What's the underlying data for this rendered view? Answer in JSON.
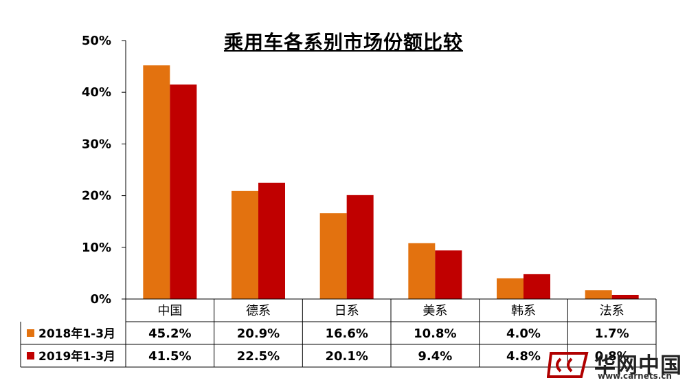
{
  "chart_data": {
    "type": "bar",
    "title": "乘用车各系别市场份额比较",
    "categories": [
      "中国",
      "德系",
      "日系",
      "美系",
      "韩系",
      "法系"
    ],
    "series": [
      {
        "name": "2018年1-3月",
        "color": "#E3720F",
        "values": [
          45.2,
          20.9,
          16.6,
          10.8,
          4.0,
          1.7
        ],
        "labels": [
          "45.2%",
          "20.9%",
          "16.6%",
          "10.8%",
          "4.0%",
          "1.7%"
        ]
      },
      {
        "name": "2019年1-3月",
        "color": "#C00000",
        "values": [
          41.5,
          22.5,
          20.1,
          9.4,
          4.8,
          0.8
        ],
        "labels": [
          "41.5%",
          "22.5%",
          "20.1%",
          "9.4%",
          "4.8%",
          "0.8%"
        ]
      }
    ],
    "ylim": [
      0,
      50
    ],
    "yticks": [
      "0%",
      "10%",
      "20%",
      "30%",
      "40%",
      "50%"
    ],
    "data_table": true
  },
  "watermark": {
    "brand": "华网中国",
    "url": "www.carnets.cn"
  }
}
